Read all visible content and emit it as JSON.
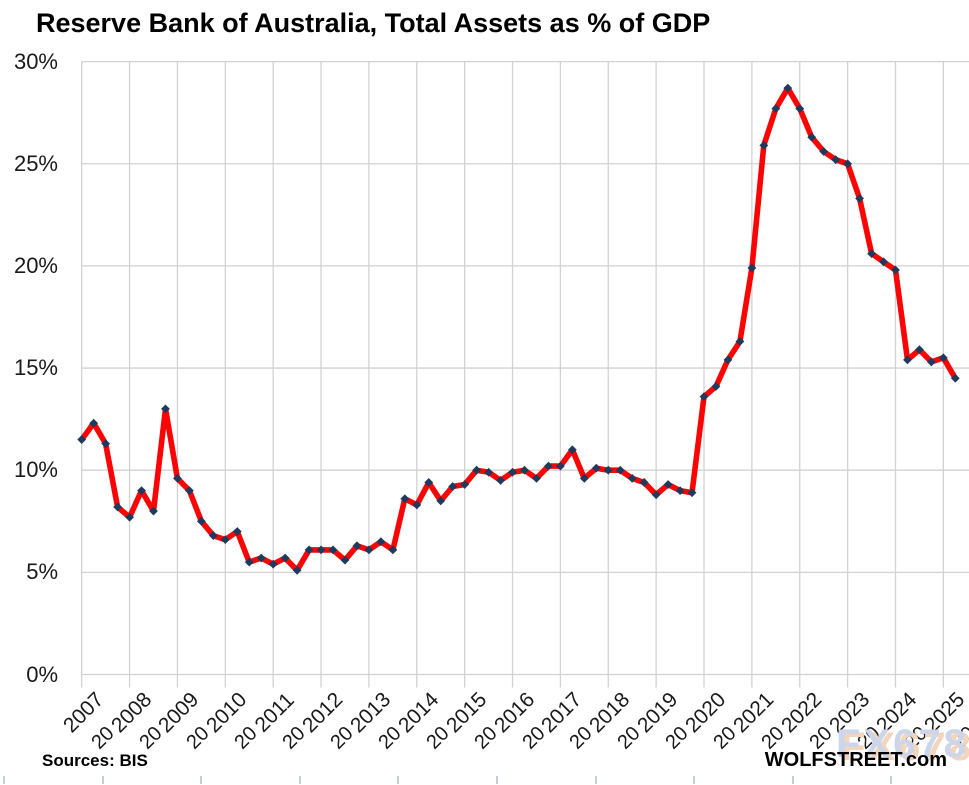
{
  "title": "Reserve Bank of Australia, Total Assets as % of GDP",
  "footer": {
    "sources": "Sources: BIS",
    "brand": "WOLFSTREET.com",
    "watermark": "FX678"
  },
  "chart_data": {
    "type": "line",
    "title": "Reserve Bank of Australia, Total Assets as % of GDP",
    "series_name": "RBA total assets as % of GDP",
    "unit": "%",
    "frequency": "quarterly",
    "x_range": [
      "2007-Q1",
      "2025-Q2"
    ],
    "x_start_year": 2007,
    "points_per_year": 4,
    "x_tick_labels": [
      "2007",
      "2008",
      "2009",
      "2010",
      "2011",
      "2012",
      "2013",
      "2014",
      "2015",
      "2016",
      "2017",
      "2018",
      "2019",
      "2020",
      "2021",
      "2022",
      "2023",
      "2024",
      "2025"
    ],
    "x_partial_second_row_label": "20",
    "y_ticks": [
      30,
      25,
      20,
      15,
      10,
      5,
      0
    ],
    "y_tick_labels": [
      "30%",
      "25%",
      "20%",
      "15%",
      "10%",
      "5%",
      "0%"
    ],
    "ylim": [
      0,
      30
    ],
    "grid": true,
    "legend": "none",
    "line_color": "#fb0404",
    "marker_color": "#1f3a5c",
    "marker_shape": "diamond",
    "gridline_color": "#d2d2d2",
    "values": [
      11.5,
      12.3,
      11.3,
      8.2,
      7.7,
      9.0,
      8.0,
      13.0,
      9.6,
      9.0,
      7.5,
      6.8,
      6.6,
      7.0,
      5.5,
      5.7,
      5.4,
      5.7,
      5.1,
      6.1,
      6.1,
      6.1,
      5.6,
      6.3,
      6.1,
      6.5,
      6.1,
      8.6,
      8.3,
      9.4,
      8.5,
      9.2,
      9.3,
      10.0,
      9.9,
      9.5,
      9.9,
      10.0,
      9.6,
      10.2,
      10.2,
      11.0,
      9.6,
      10.1,
      10.0,
      10.0,
      9.6,
      9.4,
      8.8,
      9.3,
      9.0,
      8.9,
      13.6,
      14.1,
      15.4,
      16.3,
      19.9,
      25.9,
      27.7,
      28.7,
      27.7,
      26.3,
      25.6,
      25.2,
      25.0,
      23.3,
      20.6,
      20.2,
      19.8,
      15.4,
      15.9,
      15.3,
      15.5,
      14.5
    ]
  }
}
